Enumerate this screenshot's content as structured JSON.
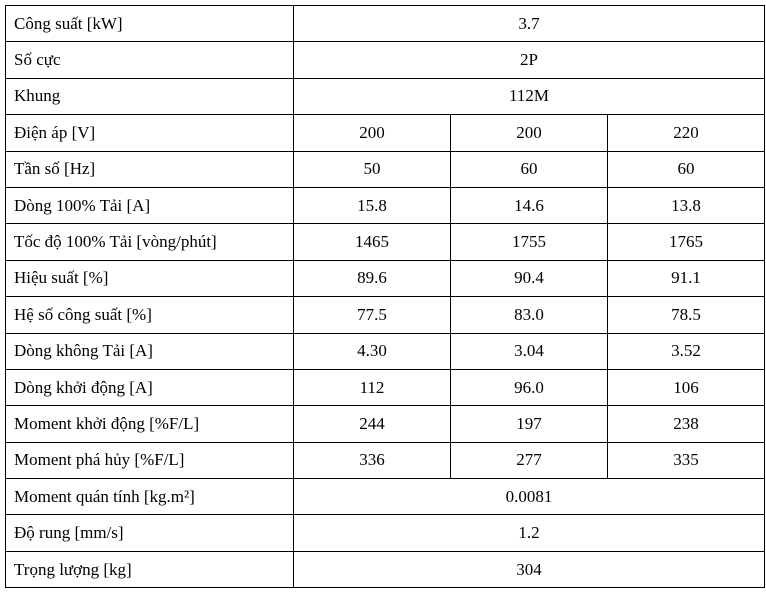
{
  "table": {
    "rows": [
      [
        "Công suất [kW]",
        "3.7"
      ],
      [
        "Số cực",
        "2P"
      ],
      [
        "Khung",
        "112M"
      ],
      [
        "Điện áp [V]",
        "200",
        "200",
        "220"
      ],
      [
        "Tần số [Hz]",
        "50",
        "60",
        "60"
      ],
      [
        "Dòng 100% Tải [A]",
        "15.8",
        "14.6",
        "13.8"
      ],
      [
        "Tốc độ 100% Tải [vòng/phút]",
        "1465",
        "1755",
        "1765"
      ],
      [
        "Hiệu suất [%]",
        "89.6",
        "90.4",
        "91.1"
      ],
      [
        "Hệ số công suất [%]",
        "77.5",
        "83.0",
        "78.5"
      ],
      [
        "Dòng không Tải [A]",
        "4.30",
        "3.04",
        "3.52"
      ],
      [
        "Dòng khởi động [A]",
        "112",
        "96.0",
        "106"
      ],
      [
        "Moment khởi động [%F/L]",
        "244",
        "197",
        "238"
      ],
      [
        "Moment phá hủy [%F/L]",
        "336",
        "277",
        "335"
      ],
      [
        "Moment quán tính [kg.m²]",
        "0.0081"
      ],
      [
        "Độ rung [mm/s]",
        "1.2"
      ],
      [
        "Trọng lượng [kg]",
        "304"
      ]
    ]
  }
}
